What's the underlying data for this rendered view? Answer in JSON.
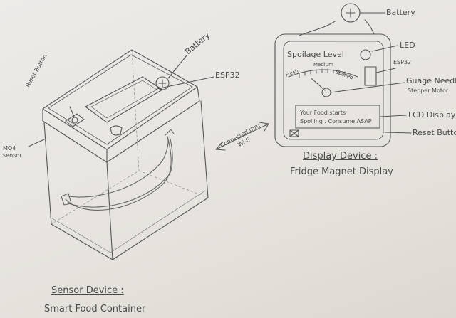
{
  "sensor_device": {
    "labels": {
      "reset_button": "Reset Button",
      "battery": "Battery",
      "esp32": "ESP32",
      "mq4_sensor": "MQ4\nsensor"
    },
    "heading": "Sensor Device :",
    "subtitle": "Smart Food Container"
  },
  "connection": {
    "label": "Connected thru\nWi-fi"
  },
  "display_device": {
    "battery_label": "Battery",
    "screen_title": "Spoilage Level",
    "gauge_labels": {
      "left": "Fresh",
      "middle": "Medium",
      "right": "Spoiled"
    },
    "lcd_text": "Your Food starts\nSpoiling . Consume ASAP",
    "callouts": {
      "led": "LED",
      "esp32": "ESP32",
      "gauge_needle": "Guage Needle&",
      "stepper_motor": "Stepper Motor",
      "lcd_display": "LCD Display",
      "reset_button": "Reset Button"
    },
    "heading": "Display Device :",
    "subtitle": "Fridge Magnet Display"
  }
}
